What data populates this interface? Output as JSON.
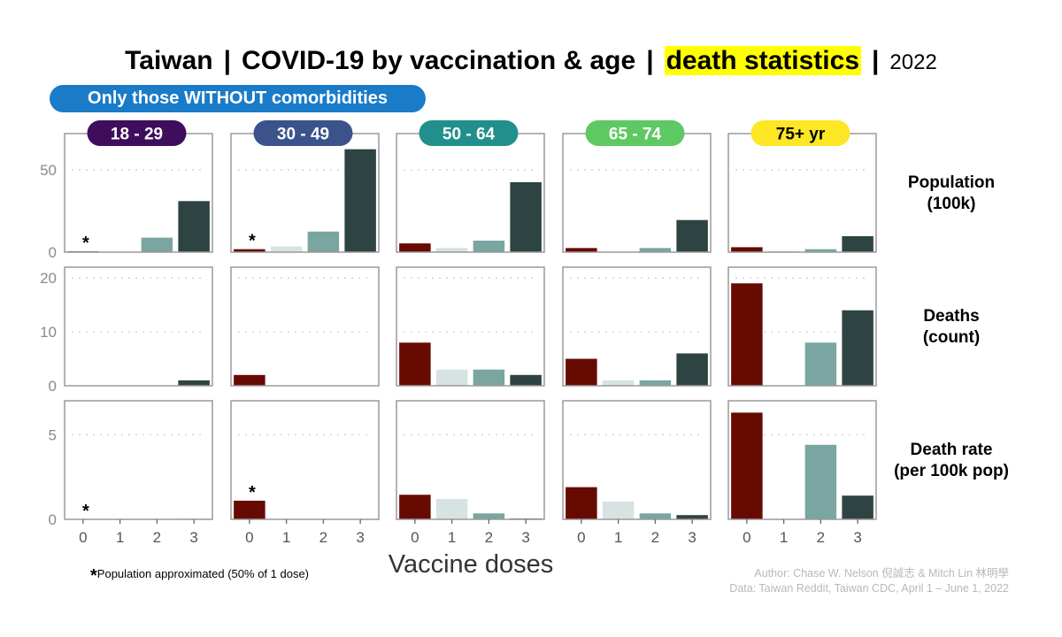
{
  "header": {
    "country": "Taiwan",
    "topic": "COVID-19 by vaccination & age",
    "highlight": "death statistics",
    "year": "2022",
    "separator": "|",
    "subtitle": "Only those WITHOUT comorbidities"
  },
  "footnote": {
    "star": "*",
    "text": "Population approximated (50% of 1 dose)"
  },
  "credits": {
    "author": "Author: Chase W. Nelson 倪誠志 & Mitch Lin 林明學",
    "data_source": "Data: Taiwan Reddit, Taiwan CDC, April 1 – June 1, 2022"
  },
  "colors": {
    "dose0": "#660a02",
    "dose1": "#d6e3e2",
    "dose2": "#7aa5a1",
    "dose3": "#2e4442",
    "panel_border": "#9a9a9a",
    "gridline": "#cfcfcf",
    "axis_text": "#8a8a8a"
  },
  "chart_data": {
    "type": "bar",
    "xlabel": "Vaccine doses",
    "categories": [
      "0",
      "1",
      "2",
      "3"
    ],
    "facet_columns": [
      {
        "label": "18 - 29",
        "color": "#3e0d5b"
      },
      {
        "label": "30 - 49",
        "color": "#3b528b"
      },
      {
        "label": "50 - 64",
        "color": "#21908c"
      },
      {
        "label": "65 - 74",
        "color": "#5ec962"
      },
      {
        "label": "75+ yr",
        "color": "#fde725"
      }
    ],
    "facet_rows": [
      {
        "label_lines": [
          "Population",
          "(100k)"
        ],
        "ylim": [
          0,
          72
        ],
        "yticks": [
          0,
          50
        ],
        "values": [
          [
            0.5,
            0.3,
            8.8,
            31
          ],
          [
            1.8,
            3.5,
            12.5,
            62.5
          ],
          [
            5.3,
            2.5,
            7.0,
            42.5
          ],
          [
            2.5,
            0.3,
            2.5,
            19.5
          ],
          [
            3.0,
            0.8,
            1.8,
            9.7
          ]
        ],
        "star_columns": [
          0,
          1
        ]
      },
      {
        "label_lines": [
          "Deaths",
          "(count)"
        ],
        "ylim": [
          0,
          22
        ],
        "yticks": [
          0,
          10,
          20
        ],
        "values": [
          [
            0,
            0,
            0,
            1
          ],
          [
            2,
            0,
            0,
            0
          ],
          [
            8,
            3,
            3,
            2
          ],
          [
            5,
            1,
            1,
            6
          ],
          [
            19,
            0,
            8,
            14
          ]
        ],
        "star_columns": []
      },
      {
        "label_lines": [
          "Death rate",
          "(per 100k pop)"
        ],
        "ylim": [
          0,
          7
        ],
        "yticks": [
          0,
          5
        ],
        "values": [
          [
            0,
            0,
            0,
            0.03
          ],
          [
            1.1,
            0,
            0,
            0
          ],
          [
            1.45,
            1.2,
            0.35,
            0.05
          ],
          [
            1.9,
            1.05,
            0.35,
            0.25
          ],
          [
            6.3,
            0,
            4.4,
            1.4
          ]
        ],
        "star_columns": [
          0,
          1
        ]
      }
    ]
  }
}
